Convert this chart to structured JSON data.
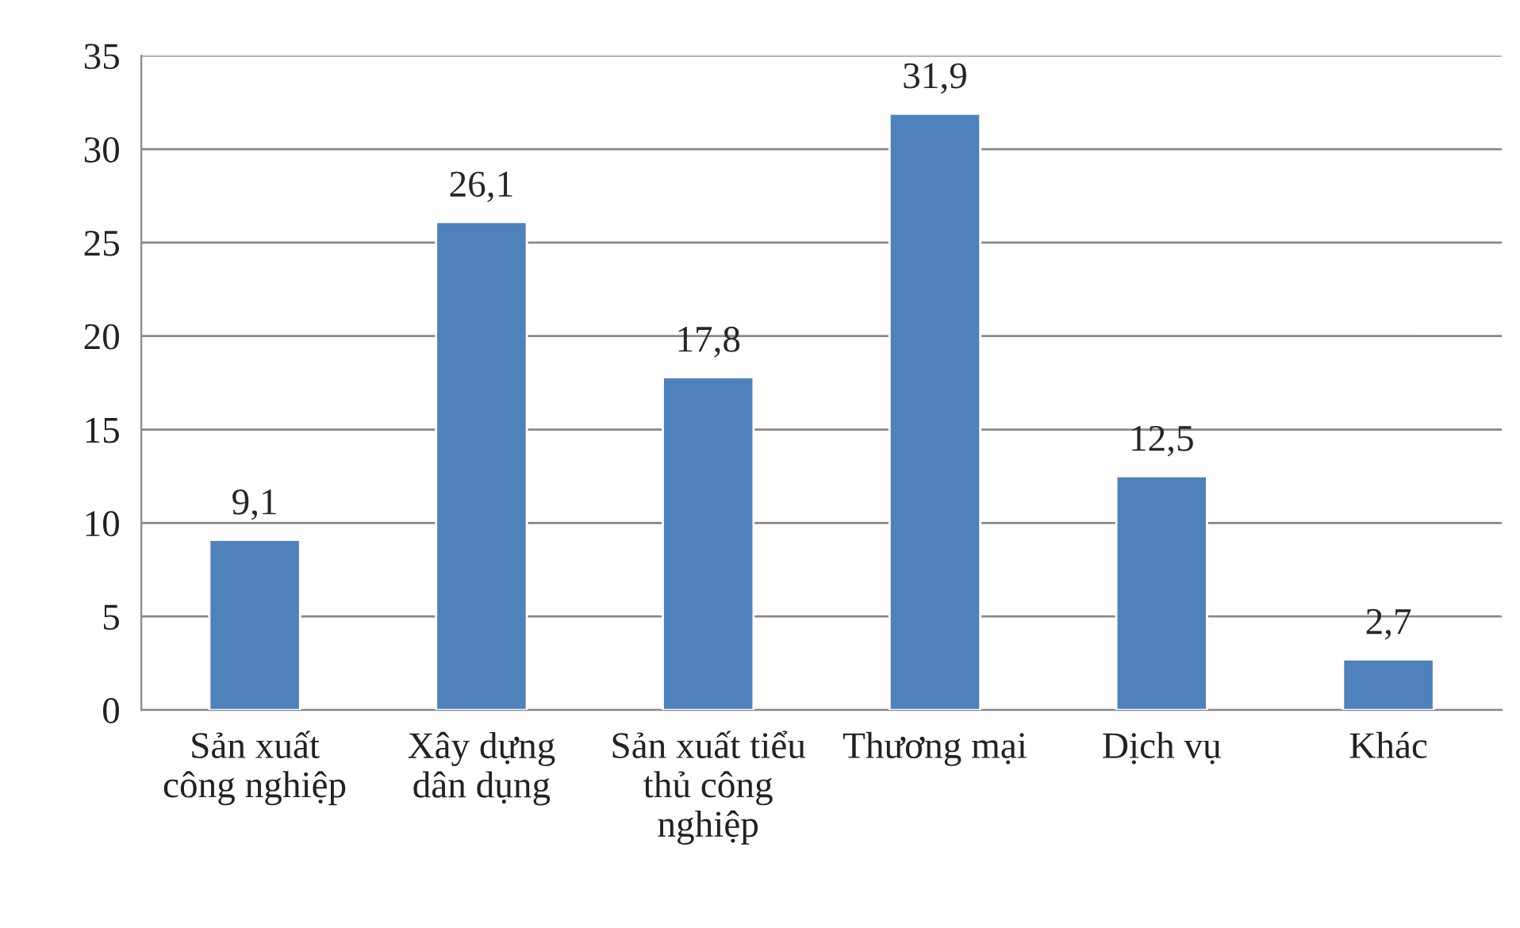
{
  "chart_data": {
    "type": "bar",
    "categories": [
      "Sản xuất\ncông nghiệp",
      "Xây dựng\ndân dụng",
      "Sản xuất tiểu\nthủ công\nnghiệp",
      "Thương mại",
      "Dịch vụ",
      "Khác"
    ],
    "values": [
      9.1,
      26.1,
      17.8,
      31.9,
      12.5,
      2.7
    ],
    "value_labels": [
      "9,1",
      "26,1",
      "17,8",
      "31,9",
      "12,5",
      "2,7"
    ],
    "color": "#4f81bd",
    "ylim": [
      0,
      35
    ],
    "yticks": [
      0,
      5,
      10,
      15,
      20,
      25,
      30,
      35
    ],
    "grid": "y"
  }
}
